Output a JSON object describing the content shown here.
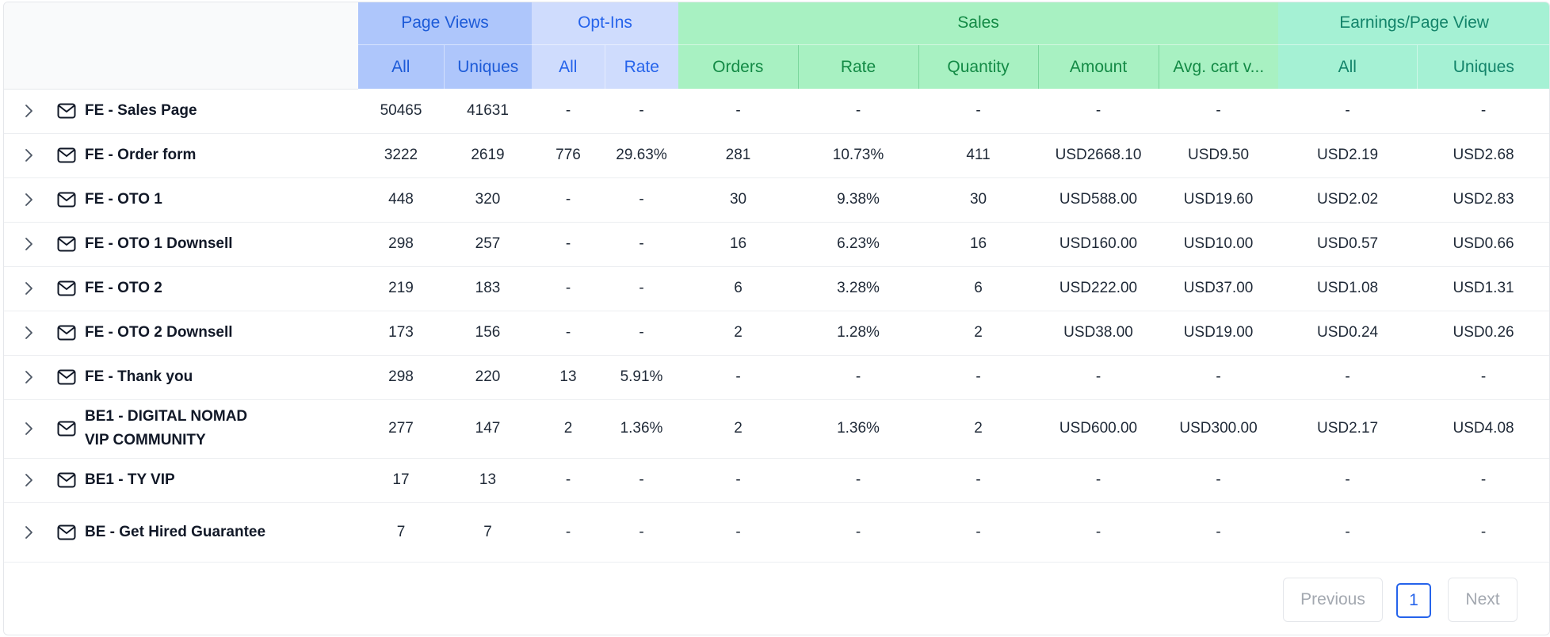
{
  "header": {
    "groups": {
      "page_views": "Page Views",
      "opt_ins": "Opt-Ins",
      "sales": "Sales",
      "earnings": "Earnings/Page View"
    },
    "sub": {
      "pv_all": "All",
      "pv_uniques": "Uniques",
      "opt_all": "All",
      "opt_rate": "Rate",
      "sales_orders": "Orders",
      "sales_rate": "Rate",
      "sales_quantity": "Quantity",
      "sales_amount": "Amount",
      "sales_avg_cart": "Avg. cart v...",
      "epv_all": "All",
      "epv_uniques": "Uniques"
    }
  },
  "rows": [
    {
      "name": "FE - Sales Page",
      "pv_all": "50465",
      "pv_uniques": "41631",
      "opt_all": "-",
      "opt_rate": "-",
      "orders": "-",
      "rate": "-",
      "quantity": "-",
      "amount": "-",
      "avg_cart": "-",
      "epv_all": "-",
      "epv_uniques": "-"
    },
    {
      "name": "FE - Order form",
      "pv_all": "3222",
      "pv_uniques": "2619",
      "opt_all": "776",
      "opt_rate": "29.63%",
      "orders": "281",
      "rate": "10.73%",
      "quantity": "411",
      "amount": "USD2668.10",
      "avg_cart": "USD9.50",
      "epv_all": "USD2.19",
      "epv_uniques": "USD2.68"
    },
    {
      "name": "FE - OTO 1",
      "pv_all": "448",
      "pv_uniques": "320",
      "opt_all": "-",
      "opt_rate": "-",
      "orders": "30",
      "rate": "9.38%",
      "quantity": "30",
      "amount": "USD588.00",
      "avg_cart": "USD19.60",
      "epv_all": "USD2.02",
      "epv_uniques": "USD2.83"
    },
    {
      "name": "FE - OTO 1 Downsell",
      "pv_all": "298",
      "pv_uniques": "257",
      "opt_all": "-",
      "opt_rate": "-",
      "orders": "16",
      "rate": "6.23%",
      "quantity": "16",
      "amount": "USD160.00",
      "avg_cart": "USD10.00",
      "epv_all": "USD0.57",
      "epv_uniques": "USD0.66"
    },
    {
      "name": "FE - OTO 2",
      "pv_all": "219",
      "pv_uniques": "183",
      "opt_all": "-",
      "opt_rate": "-",
      "orders": "6",
      "rate": "3.28%",
      "quantity": "6",
      "amount": "USD222.00",
      "avg_cart": "USD37.00",
      "epv_all": "USD1.08",
      "epv_uniques": "USD1.31"
    },
    {
      "name": "FE - OTO 2 Downsell",
      "pv_all": "173",
      "pv_uniques": "156",
      "opt_all": "-",
      "opt_rate": "-",
      "orders": "2",
      "rate": "1.28%",
      "quantity": "2",
      "amount": "USD38.00",
      "avg_cart": "USD19.00",
      "epv_all": "USD0.24",
      "epv_uniques": "USD0.26"
    },
    {
      "name": "FE - Thank you",
      "pv_all": "298",
      "pv_uniques": "220",
      "opt_all": "13",
      "opt_rate": "5.91%",
      "orders": "-",
      "rate": "-",
      "quantity": "-",
      "amount": "-",
      "avg_cart": "-",
      "epv_all": "-",
      "epv_uniques": "-"
    },
    {
      "name": "BE1 - DIGITAL NOMAD VIP COMMUNITY",
      "pv_all": "277",
      "pv_uniques": "147",
      "opt_all": "2",
      "opt_rate": "1.36%",
      "orders": "2",
      "rate": "1.36%",
      "quantity": "2",
      "amount": "USD600.00",
      "avg_cart": "USD300.00",
      "epv_all": "USD2.17",
      "epv_uniques": "USD4.08"
    },
    {
      "name": "BE1 - TY VIP",
      "pv_all": "17",
      "pv_uniques": "13",
      "opt_all": "-",
      "opt_rate": "-",
      "orders": "-",
      "rate": "-",
      "quantity": "-",
      "amount": "-",
      "avg_cart": "-",
      "epv_all": "-",
      "epv_uniques": "-"
    },
    {
      "name": "BE - Get Hired Guarantee",
      "pv_all": "7",
      "pv_uniques": "7",
      "opt_all": "-",
      "opt_rate": "-",
      "orders": "-",
      "rate": "-",
      "quantity": "-",
      "amount": "-",
      "avg_cart": "-",
      "epv_all": "-",
      "epv_uniques": "-"
    }
  ],
  "pagination": {
    "previous": "Previous",
    "current_page": "1",
    "next": "Next"
  },
  "icons": {
    "row_expand": "chevron-right-icon",
    "row_type": "mail-icon"
  },
  "colors": {
    "page_views_header": "#aec6fb",
    "opt_ins_header": "#cfdcfd",
    "sales_header": "#a8f1c2",
    "earnings_header": "#a5f1d4",
    "accent": "#2563eb"
  }
}
